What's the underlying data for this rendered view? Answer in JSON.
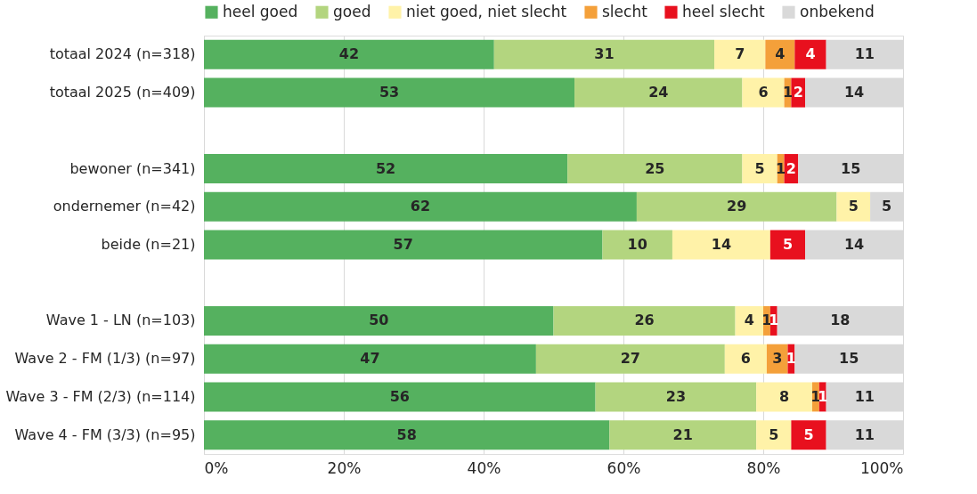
{
  "chart_data": {
    "type": "bar",
    "orientation": "horizontal",
    "stacked": true,
    "categories": [
      "totaal 2024 (n=318)",
      "totaal 2025 (n=409)",
      null,
      "bewoner (n=341)",
      "ondernemer (n=42)",
      "beide (n=21)",
      null,
      "Wave 1 - LN (n=103)",
      "Wave 2 - FM (1/3) (n=97)",
      "Wave 3 - FM (2/3) (n=114)",
      "Wave 4 - FM (3/3) (n=95)"
    ],
    "series": [
      {
        "name": "heel goed",
        "color": "#55b15f",
        "values": [
          41.5,
          53,
          null,
          52,
          61.9,
          57,
          null,
          50,
          47.5,
          56,
          58
        ],
        "value_labels": [
          "42",
          "53",
          null,
          "52",
          "62",
          "57",
          null,
          "50",
          "47",
          "56",
          "58"
        ]
      },
      {
        "name": "goed",
        "color": "#b3d57f",
        "values": [
          31.5,
          24,
          null,
          25,
          28.6,
          10,
          null,
          26,
          27,
          23,
          21
        ],
        "value_labels": [
          "31",
          "24",
          null,
          "25",
          "29",
          "10",
          null,
          "26",
          "27",
          "23",
          "21"
        ]
      },
      {
        "name": "niet goed, niet slecht",
        "color": "#fff2a8",
        "values": [
          7.3,
          6,
          null,
          5,
          4.8,
          14,
          null,
          4,
          6,
          8,
          5
        ],
        "value_labels": [
          "7",
          "6",
          null,
          "5",
          "5",
          "14",
          null,
          "4",
          "6",
          "8",
          "5"
        ]
      },
      {
        "name": "slecht",
        "color": "#f4a03a",
        "values": [
          4.2,
          1,
          null,
          1,
          null,
          null,
          null,
          1,
          3,
          1,
          null
        ],
        "value_labels": [
          "4",
          "1",
          null,
          "1",
          null,
          null,
          null,
          "1",
          "3",
          "1",
          null
        ]
      },
      {
        "name": "heel slecht",
        "color": "#e8101e",
        "values": [
          4.5,
          2,
          null,
          2,
          null,
          5,
          null,
          1,
          1,
          1,
          5
        ],
        "value_labels": [
          "4",
          "2",
          null,
          "2",
          null,
          "5",
          null,
          "1",
          "1",
          "1",
          "5"
        ]
      },
      {
        "name": "onbekend",
        "color": "#d9d9d9",
        "values": [
          11,
          14,
          null,
          15,
          4.7,
          14,
          null,
          18,
          15.5,
          11,
          11
        ],
        "value_labels": [
          "11",
          "14",
          null,
          "15",
          "5",
          "14",
          null,
          "18",
          "15",
          "11",
          "11"
        ]
      }
    ],
    "xlim": [
      0,
      100
    ],
    "xticks": [
      {
        "value": 0,
        "label": "0%"
      },
      {
        "value": 20,
        "label": "20%"
      },
      {
        "value": 40,
        "label": "40%"
      },
      {
        "value": 60,
        "label": "60%"
      },
      {
        "value": 80,
        "label": "80%"
      },
      {
        "value": 100,
        "label": "100%"
      }
    ],
    "grid": "x",
    "legend": "top"
  }
}
